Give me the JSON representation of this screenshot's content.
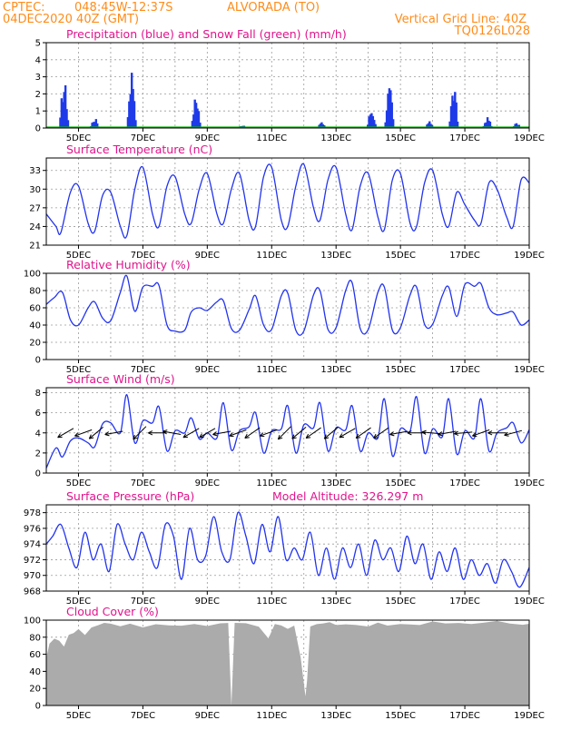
{
  "header": {
    "source": "CPTEC:",
    "coords": "048:45W-12:37S",
    "station": "ALVORADA (TO)",
    "run": "04DEC2020 40Z (GMT)",
    "grid_note": "Vertical Grid Line: 40Z",
    "code": "TQ0126L028"
  },
  "colors": {
    "rain": "#1f3ae8",
    "snow": "#00b300",
    "line": "#2233ee",
    "cloud": "#ababab",
    "title": "#e0148c",
    "header": "#ff8c1a"
  },
  "chart_data": [
    {
      "id": "precip",
      "type": "bar",
      "title": "Precipitation (blue) and Snow Fall (green) (mm/h)",
      "x_ticks": [
        "5DEC",
        "7DEC",
        "9DEC",
        "11DEC",
        "13DEC",
        "15DEC",
        "17DEC",
        "19DEC"
      ],
      "x_range_days": [
        4.0,
        19.0
      ],
      "ylim": [
        0,
        5
      ],
      "y_ticks": [
        0,
        1,
        2,
        3,
        4,
        5
      ],
      "series": [
        {
          "kind": "rain",
          "bursts": [
            {
              "day": 4.55,
              "peak": 2.9
            },
            {
              "day": 5.5,
              "peak": 0.6
            },
            {
              "day": 6.65,
              "peak": 3.7
            },
            {
              "day": 8.65,
              "peak": 2.0
            },
            {
              "day": 10.1,
              "peak": 0.2
            },
            {
              "day": 12.55,
              "peak": 0.35
            },
            {
              "day": 14.1,
              "peak": 1.2
            },
            {
              "day": 14.65,
              "peak": 2.55
            },
            {
              "day": 15.9,
              "peak": 0.4
            },
            {
              "day": 16.65,
              "peak": 2.45
            },
            {
              "day": 17.7,
              "peak": 0.65
            },
            {
              "day": 18.6,
              "peak": 0.3
            }
          ]
        },
        {
          "kind": "snow",
          "values": [
            0
          ]
        }
      ]
    },
    {
      "id": "temperature",
      "type": "line",
      "title": "Surface Temperature (nC)",
      "x_ticks": [
        "5DEC",
        "7DEC",
        "9DEC",
        "11DEC",
        "13DEC",
        "15DEC",
        "17DEC",
        "19DEC"
      ],
      "x_range_days": [
        4.0,
        19.0
      ],
      "ylim": [
        21,
        35
      ],
      "y_ticks": [
        21,
        24,
        27,
        30,
        33
      ],
      "series": [
        {
          "name": "",
          "t": [
            4.0,
            4.3,
            4.45,
            4.75,
            5.0,
            5.3,
            5.5,
            5.75,
            6.0,
            6.3,
            6.5,
            6.75,
            7.0,
            7.3,
            7.5,
            7.75,
            8.0,
            8.3,
            8.5,
            8.75,
            9.0,
            9.3,
            9.5,
            9.75,
            10.0,
            10.3,
            10.5,
            10.75,
            11.0,
            11.3,
            11.5,
            11.75,
            12.0,
            12.3,
            12.5,
            12.75,
            13.0,
            13.3,
            13.5,
            13.75,
            14.0,
            14.3,
            14.5,
            14.75,
            15.0,
            15.3,
            15.5,
            15.75,
            16.0,
            16.3,
            16.5,
            16.75,
            17.0,
            17.3,
            17.5,
            17.75,
            18.0,
            18.3,
            18.5,
            18.75,
            19.0
          ],
          "values": [
            26.0,
            24.0,
            23.0,
            29.5,
            30.5,
            24.5,
            23.2,
            29.0,
            29.5,
            24.0,
            22.5,
            30.0,
            33.5,
            26.0,
            24.0,
            30.5,
            32.0,
            26.0,
            24.5,
            30.0,
            32.5,
            26.0,
            24.5,
            30.0,
            32.5,
            25.0,
            24.0,
            32.0,
            33.5,
            25.0,
            24.0,
            30.5,
            34.0,
            27.0,
            25.0,
            31.5,
            33.5,
            26.0,
            23.5,
            30.5,
            32.5,
            25.5,
            23.5,
            31.5,
            32.5,
            24.5,
            24.0,
            31.0,
            33.0,
            26.0,
            24.0,
            29.5,
            27.5,
            25.0,
            24.5,
            31.0,
            30.0,
            25.5,
            24.0,
            31.5,
            31.0
          ]
        }
      ]
    },
    {
      "id": "humidity",
      "type": "line",
      "title": "Relative Humidity (%)",
      "x_ticks": [
        "5DEC",
        "7DEC",
        "9DEC",
        "11DEC",
        "13DEC",
        "15DEC",
        "17DEC",
        "19DEC"
      ],
      "x_range_days": [
        4.0,
        19.0
      ],
      "ylim": [
        0,
        100
      ],
      "y_ticks": [
        0,
        20,
        40,
        60,
        80,
        100
      ],
      "series": [
        {
          "name": "",
          "t": [
            4.0,
            4.25,
            4.5,
            4.75,
            5.0,
            5.3,
            5.5,
            5.75,
            6.0,
            6.3,
            6.5,
            6.75,
            7.0,
            7.3,
            7.5,
            7.75,
            8.0,
            8.3,
            8.5,
            8.75,
            9.0,
            9.3,
            9.5,
            9.75,
            10.0,
            10.3,
            10.5,
            10.75,
            11.0,
            11.3,
            11.5,
            11.75,
            12.0,
            12.3,
            12.5,
            12.75,
            13.0,
            13.3,
            13.5,
            13.75,
            14.0,
            14.3,
            14.5,
            14.75,
            15.0,
            15.3,
            15.5,
            15.75,
            16.0,
            16.3,
            16.5,
            16.75,
            17.0,
            17.3,
            17.5,
            17.75,
            18.0,
            18.3,
            18.5,
            18.75,
            19.0
          ],
          "values": [
            64,
            72,
            78,
            46,
            40,
            60,
            67,
            48,
            45,
            78,
            97,
            56,
            84,
            85,
            86,
            40,
            33,
            34,
            55,
            60,
            57,
            67,
            68,
            36,
            34,
            58,
            74,
            40,
            35,
            74,
            77,
            34,
            33,
            75,
            80,
            35,
            37,
            80,
            89,
            36,
            35,
            78,
            84,
            34,
            37,
            75,
            84,
            41,
            41,
            74,
            84,
            50,
            87,
            85,
            88,
            60,
            52,
            54,
            55,
            40,
            46
          ]
        }
      ]
    },
    {
      "id": "wind",
      "type": "line",
      "title": "Surface Wind (m/s)",
      "x_ticks": [
        "5DEC",
        "7DEC",
        "9DEC",
        "11DEC",
        "13DEC",
        "15DEC",
        "17DEC",
        "19DEC"
      ],
      "x_range_days": [
        4.0,
        19.0
      ],
      "ylim": [
        0,
        8.5
      ],
      "y_ticks": [
        0,
        2,
        4,
        6,
        8
      ],
      "series": [
        {
          "name": "",
          "t": [
            4.0,
            4.3,
            4.5,
            4.75,
            5.0,
            5.3,
            5.5,
            5.75,
            6.0,
            6.3,
            6.5,
            6.75,
            7.0,
            7.3,
            7.5,
            7.75,
            8.0,
            8.3,
            8.5,
            8.75,
            9.0,
            9.3,
            9.5,
            9.75,
            10.0,
            10.3,
            10.5,
            10.75,
            11.0,
            11.3,
            11.5,
            11.75,
            12.0,
            12.3,
            12.5,
            12.75,
            13.0,
            13.3,
            13.5,
            13.75,
            14.0,
            14.3,
            14.5,
            14.75,
            15.0,
            15.3,
            15.5,
            15.75,
            16.0,
            16.3,
            16.5,
            16.75,
            17.0,
            17.3,
            17.5,
            17.75,
            18.0,
            18.3,
            18.5,
            18.75,
            19.0
          ],
          "values": [
            0.5,
            2.5,
            1.6,
            3.2,
            3.5,
            3.0,
            2.6,
            4.9,
            5.0,
            4.0,
            7.8,
            3.0,
            5.2,
            5.0,
            6.6,
            2.2,
            4.2,
            4.0,
            5.5,
            3.4,
            4.0,
            3.5,
            7.0,
            2.3,
            4.2,
            4.6,
            6.0,
            2.0,
            4.2,
            4.4,
            6.7,
            2.0,
            4.8,
            4.5,
            7.0,
            2.2,
            4.5,
            4.3,
            6.7,
            2.2,
            4.0,
            3.5,
            7.4,
            1.7,
            4.4,
            4.2,
            7.6,
            2.0,
            4.4,
            3.6,
            7.4,
            1.9,
            4.2,
            3.5,
            7.4,
            2.2,
            4.0,
            4.5,
            5.0,
            3.0,
            4.3
          ]
        },
        {
          "kind": "wind-barbs",
          "arrows": [
            {
              "day": 4.6,
              "dir_deg": 60
            },
            {
              "day": 5.15,
              "dir_deg": 70
            },
            {
              "day": 5.55,
              "dir_deg": 50
            },
            {
              "day": 6.1,
              "dir_deg": 80
            },
            {
              "day": 6.9,
              "dir_deg": 45
            },
            {
              "day": 7.45,
              "dir_deg": 90
            },
            {
              "day": 7.9,
              "dir_deg": 100
            },
            {
              "day": 8.5,
              "dir_deg": 60
            },
            {
              "day": 9.0,
              "dir_deg": 60
            },
            {
              "day": 9.45,
              "dir_deg": 80
            },
            {
              "day": 9.95,
              "dir_deg": 70
            },
            {
              "day": 10.4,
              "dir_deg": 55
            },
            {
              "day": 10.9,
              "dir_deg": 70
            },
            {
              "day": 11.4,
              "dir_deg": 45
            },
            {
              "day": 11.85,
              "dir_deg": 50
            },
            {
              "day": 12.3,
              "dir_deg": 55
            },
            {
              "day": 12.85,
              "dir_deg": 50
            },
            {
              "day": 13.35,
              "dir_deg": 60
            },
            {
              "day": 13.85,
              "dir_deg": 55
            },
            {
              "day": 14.4,
              "dir_deg": 55
            },
            {
              "day": 14.95,
              "dir_deg": 80
            },
            {
              "day": 15.5,
              "dir_deg": 90
            },
            {
              "day": 15.95,
              "dir_deg": 95
            },
            {
              "day": 16.45,
              "dir_deg": 80
            },
            {
              "day": 16.95,
              "dir_deg": 85
            },
            {
              "day": 17.5,
              "dir_deg": 70
            },
            {
              "day": 18.0,
              "dir_deg": 90
            },
            {
              "day": 18.5,
              "dir_deg": 75
            }
          ]
        }
      ]
    },
    {
      "id": "pressure",
      "type": "line",
      "title": "Surface Pressure (hPa)",
      "annotation": "Model Altitude: 326.297 m",
      "x_ticks": [
        "5DEC",
        "7DEC",
        "9DEC",
        "11DEC",
        "13DEC",
        "15DEC",
        "17DEC",
        "19DEC"
      ],
      "x_range_days": [
        4.0,
        19.0
      ],
      "ylim": [
        968,
        979
      ],
      "y_ticks": [
        968,
        970,
        972,
        974,
        976,
        978
      ],
      "series": [
        {
          "name": "",
          "t": [
            4.0,
            4.2,
            4.45,
            4.7,
            4.95,
            5.2,
            5.45,
            5.7,
            5.95,
            6.2,
            6.45,
            6.7,
            6.95,
            7.2,
            7.45,
            7.7,
            7.95,
            8.2,
            8.45,
            8.7,
            8.95,
            9.2,
            9.45,
            9.7,
            9.95,
            10.2,
            10.45,
            10.7,
            10.95,
            11.2,
            11.45,
            11.7,
            11.95,
            12.2,
            12.45,
            12.7,
            12.95,
            13.2,
            13.45,
            13.7,
            13.95,
            14.2,
            14.45,
            14.7,
            14.95,
            15.2,
            15.45,
            15.7,
            15.95,
            16.2,
            16.45,
            16.7,
            16.95,
            17.2,
            17.45,
            17.7,
            17.95,
            18.2,
            18.45,
            18.7,
            19.0
          ],
          "values": [
            974.0,
            975.0,
            976.5,
            973.5,
            971.0,
            975.5,
            972.0,
            974.0,
            970.5,
            976.5,
            974.0,
            972.0,
            975.5,
            973.0,
            971.0,
            976.5,
            975.0,
            969.5,
            976.0,
            972.0,
            972.5,
            977.5,
            973.0,
            972.0,
            978.0,
            975.0,
            971.5,
            976.5,
            973.0,
            977.5,
            972.0,
            973.5,
            972.0,
            975.5,
            970.0,
            973.5,
            969.5,
            973.5,
            971.0,
            974.0,
            970.0,
            974.5,
            972.0,
            973.5,
            970.5,
            975.0,
            971.5,
            974.0,
            969.5,
            973.0,
            970.5,
            973.5,
            969.5,
            972.0,
            970.0,
            971.5,
            969.0,
            972.0,
            970.5,
            968.5,
            971.0
          ]
        }
      ]
    },
    {
      "id": "cloud",
      "type": "area",
      "title": "Cloud Cover (%)",
      "x_ticks": [
        "5DEC",
        "7DEC",
        "9DEC",
        "11DEC",
        "13DEC",
        "15DEC",
        "17DEC",
        "19DEC"
      ],
      "x_range_days": [
        4.0,
        19.0
      ],
      "ylim": [
        0,
        100
      ],
      "y_ticks": [
        0,
        20,
        40,
        60,
        80,
        100
      ],
      "series": [
        {
          "name": "",
          "t": [
            4.0,
            4.1,
            4.25,
            4.4,
            4.55,
            4.7,
            4.85,
            5.0,
            5.2,
            5.4,
            5.6,
            5.8,
            6.0,
            6.3,
            6.6,
            7.0,
            7.4,
            7.8,
            8.2,
            8.6,
            9.0,
            9.4,
            9.65,
            9.75,
            9.85,
            10.2,
            10.6,
            10.9,
            11.1,
            11.3,
            11.5,
            11.7,
            11.9,
            12.05,
            12.1,
            12.2,
            12.4,
            12.6,
            12.8,
            13.0,
            13.3,
            13.6,
            14.0,
            14.3,
            14.6,
            15.0,
            15.3,
            15.6,
            16.0,
            16.4,
            16.8,
            17.2,
            17.6,
            18.0,
            18.4,
            18.8,
            19.0
          ],
          "values": [
            55,
            72,
            78,
            75,
            70,
            82,
            86,
            88,
            84,
            90,
            94,
            96,
            95,
            94,
            96,
            93,
            96,
            94,
            95,
            96,
            94,
            97,
            96,
            0,
            98,
            95,
            92,
            80,
            96,
            95,
            90,
            94,
            55,
            10,
            30,
            92,
            96,
            95,
            97,
            94,
            96,
            95,
            94,
            96,
            95,
            97,
            96,
            95,
            97,
            96,
            97,
            96,
            97,
            98,
            96,
            95,
            97
          ]
        }
      ]
    }
  ]
}
